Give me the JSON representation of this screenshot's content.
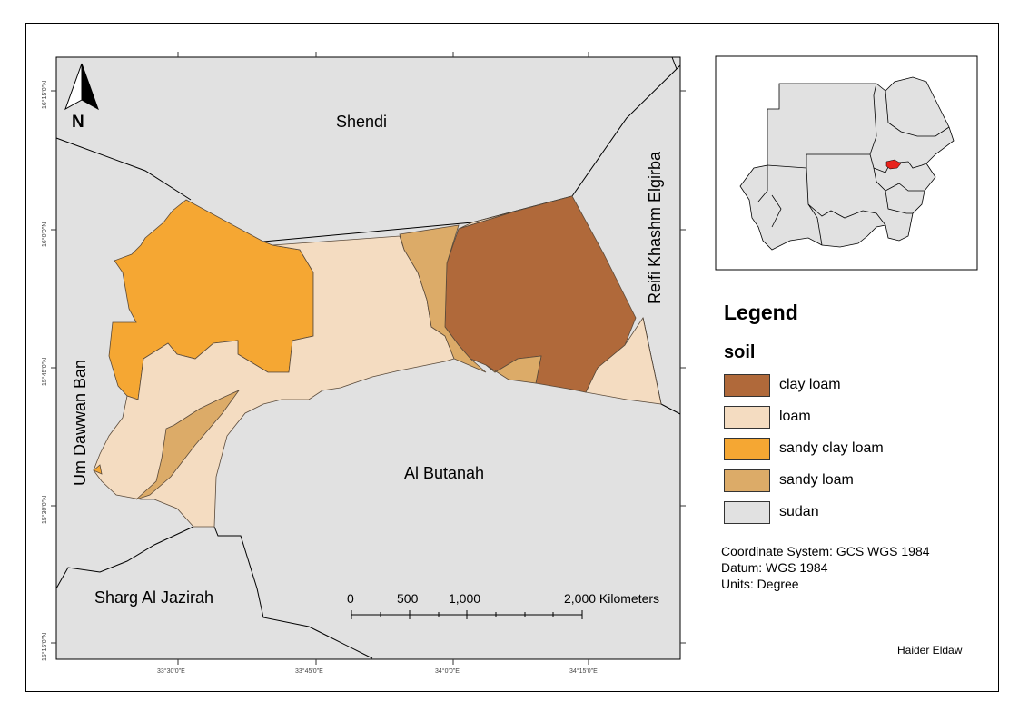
{
  "map": {
    "regions": {
      "shendi": "Shendi",
      "reifi": "Reifi Khashm Elgirba",
      "um_dawwan_ban": "Um Dawwan Ban",
      "al_butanah": "Al Butanah",
      "sharg_al_jazirah": "Sharg Al Jazirah"
    },
    "north_label": "N",
    "lon_ticks": [
      "33°30'0\"E",
      "33°45'0\"E",
      "34°0'0\"E",
      "34°15'0\"E"
    ],
    "lat_ticks": [
      "16°15'0\"N",
      "16°0'0\"N",
      "15°45'0\"N",
      "15°30'0\"N",
      "15°15'0\"N"
    ],
    "scale_bar": {
      "labels": [
        "0",
        "500",
        "1,000",
        "2,000 Kilometers"
      ]
    }
  },
  "legend": {
    "title": "Legend",
    "subtitle": "soil",
    "items": [
      {
        "label": "clay loam",
        "color": "#b0693a"
      },
      {
        "label": "loam",
        "color": "#f4dcc1"
      },
      {
        "label": "sandy clay loam",
        "color": "#f5a733"
      },
      {
        "label": "sandy loam",
        "color": "#dcab68"
      },
      {
        "label": "sudan",
        "color": "#e1e1e1"
      }
    ]
  },
  "info": {
    "coordinate_system": "Coordinate System: GCS WGS 1984",
    "datum": "Datum: WGS 1984",
    "units": "Units: Degree"
  },
  "author": "Haider Eldaw",
  "colors": {
    "background": "#e1e1e1",
    "highlight": "#e8221c"
  }
}
